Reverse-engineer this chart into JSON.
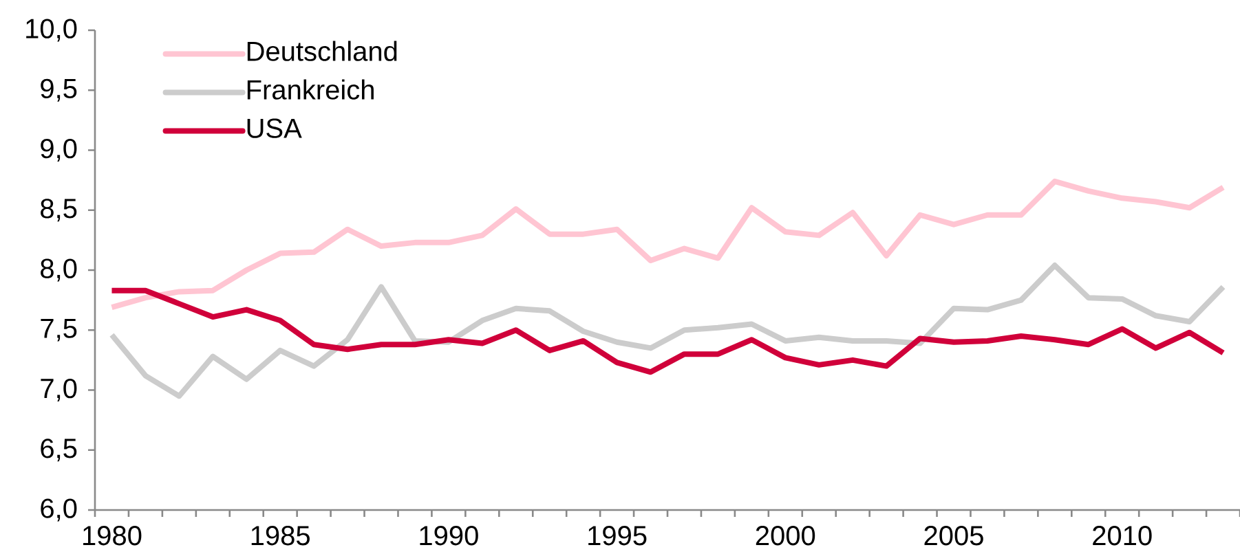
{
  "chart_data": {
    "type": "line",
    "categories": [
      "1980",
      null,
      null,
      null,
      null,
      "1985",
      null,
      null,
      null,
      null,
      "1990",
      null,
      null,
      null,
      null,
      "1995",
      null,
      null,
      null,
      null,
      "2000",
      null,
      null,
      null,
      null,
      "2005",
      null,
      null,
      null,
      null,
      "2010",
      null,
      null,
      null
    ],
    "series": [
      {
        "name": "Deutschland",
        "color": "#ffc5d2",
        "values": [
          7.69,
          7.77,
          7.82,
          7.83,
          8.0,
          8.14,
          8.15,
          8.34,
          8.2,
          8.23,
          8.23,
          8.29,
          8.51,
          8.3,
          8.3,
          8.34,
          8.08,
          8.18,
          8.1,
          8.52,
          8.32,
          8.29,
          8.48,
          8.12,
          8.46,
          8.38,
          8.46,
          8.46,
          8.74,
          8.66,
          8.6,
          8.57,
          8.52,
          8.69
        ]
      },
      {
        "name": "Frankreich",
        "color": "#cccccc",
        "values": [
          7.46,
          7.12,
          6.95,
          7.28,
          7.09,
          7.33,
          7.2,
          7.42,
          7.86,
          7.41,
          7.4,
          7.58,
          7.68,
          7.66,
          7.49,
          7.4,
          7.35,
          7.5,
          7.52,
          7.55,
          7.41,
          7.44,
          7.41,
          7.41,
          7.39,
          7.68,
          7.67,
          7.75,
          8.04,
          7.77,
          7.76,
          7.62,
          7.57,
          7.86
        ]
      },
      {
        "name": "USA",
        "color": "#d0003a",
        "values": [
          7.83,
          7.83,
          7.72,
          7.61,
          7.67,
          7.58,
          7.38,
          7.34,
          7.38,
          7.38,
          7.42,
          7.39,
          7.5,
          7.33,
          7.41,
          7.23,
          7.15,
          7.3,
          7.3,
          7.42,
          7.27,
          7.21,
          7.25,
          7.2,
          7.43,
          7.4,
          7.41,
          7.45,
          7.42,
          7.38,
          7.51,
          7.35,
          7.48,
          7.31
        ]
      }
    ],
    "ylim": [
      6,
      10
    ],
    "yticks": [
      {
        "value": 6,
        "label": "6,0"
      },
      {
        "value": 6.5,
        "label": "6,5"
      },
      {
        "value": 7,
        "label": "7,0"
      },
      {
        "value": 7.5,
        "label": "7,5"
      },
      {
        "value": 8,
        "label": "8,0"
      },
      {
        "value": 8.5,
        "label": "8,5"
      },
      {
        "value": 9,
        "label": "9,0"
      },
      {
        "value": 9.5,
        "label": "9,5"
      },
      {
        "value": 10,
        "label": "10,0"
      }
    ],
    "legend": "top left"
  }
}
